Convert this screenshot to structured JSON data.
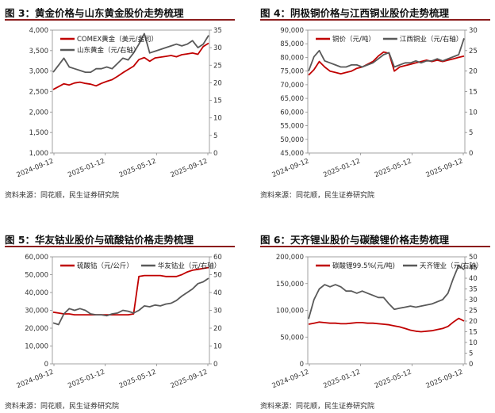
{
  "colors": {
    "red": "#c00000",
    "gray": "#595959",
    "title_rule": "#8b1c1c"
  },
  "panels": [
    {
      "title": "图 3：黄金价格与山东黄金股价走势梳理",
      "source": "资料来源：同花顺，民生证券研究院",
      "chart_data": {
        "type": "line",
        "legend_position": "top-left",
        "x_ticks": [
          "2024-09-12",
          "2025-01-12",
          "2025-05-12",
          "2025-09-12"
        ],
        "y_left": {
          "ticks": [
            "1,000",
            "1,500",
            "2,000",
            "2,500",
            "3,000",
            "3,500",
            "4,000"
          ],
          "min": 1000,
          "max": 4000
        },
        "y_right": {
          "ticks": [
            "0",
            "5",
            "10",
            "15",
            "20",
            "25",
            "30",
            "35"
          ],
          "min": 0,
          "max": 35
        },
        "series": [
          {
            "name": "COMEX黄金（美元/盎司）",
            "color": "#c00000",
            "axis": "left",
            "values": [
              2550,
              2620,
              2690,
              2660,
              2710,
              2730,
              2700,
              2680,
              2640,
              2700,
              2750,
              2790,
              2870,
              2960,
              3040,
              3120,
              3280,
              3330,
              3240,
              3320,
              3340,
              3360,
              3380,
              3350,
              3400,
              3420,
              3440,
              3410,
              3600,
              3680
            ]
          },
          {
            "name": "山东黄金（元/右轴）",
            "color": "#595959",
            "axis": "right",
            "values": [
              23.0,
              25.0,
              27.0,
              24.5,
              24.0,
              23.5,
              23.0,
              23.0,
              24.0,
              24.0,
              24.5,
              24.0,
              25.5,
              27.0,
              26.5,
              28.5,
              31.0,
              34.0,
              28.5,
              29.0,
              29.5,
              30.0,
              30.5,
              31.0,
              30.5,
              31.0,
              32.0,
              30.0,
              31.0,
              33.5
            ]
          }
        ]
      }
    },
    {
      "title": "图 4：阴极铜价格与江西铜业股价走势梳理",
      "source": "资料来源：同花顺，民生证券研究院",
      "chart_data": {
        "type": "line",
        "legend_position": "top-left",
        "x_ticks": [
          "2024-09-12",
          "2025-01-12",
          "2025-05-12",
          "2025-09-12"
        ],
        "y_left": {
          "ticks": [
            "45,000",
            "50,000",
            "55,000",
            "60,000",
            "65,000",
            "70,000",
            "75,000",
            "80,000",
            "85,000",
            "90,000"
          ],
          "min": 45000,
          "max": 90000
        },
        "y_right": {
          "ticks": [
            "0",
            "5",
            "10",
            "15",
            "20",
            "25",
            "30"
          ],
          "min": 0,
          "max": 30
        },
        "series": [
          {
            "name": "铜价（元/吨）",
            "color": "#c00000",
            "axis": "left",
            "values": [
              73500,
              75500,
              78500,
              76500,
              75000,
              74500,
              74000,
              74500,
              75000,
              76000,
              76500,
              77500,
              78500,
              80500,
              82000,
              81500,
              75000,
              76500,
              77000,
              77500,
              78000,
              78500,
              79000,
              78500,
              79000,
              78500,
              79000,
              79500,
              80000,
              80500
            ]
          },
          {
            "name": "江西铜业（元/右轴）",
            "color": "#595959",
            "axis": "right",
            "values": [
              20.0,
              23.5,
              25.0,
              22.5,
              22.0,
              21.5,
              21.0,
              21.0,
              21.5,
              21.5,
              21.0,
              21.5,
              22.0,
              23.0,
              24.0,
              24.5,
              21.0,
              21.5,
              22.0,
              22.0,
              22.5,
              22.0,
              22.5,
              22.5,
              23.0,
              22.5,
              23.0,
              23.5,
              24.0,
              28.0
            ]
          }
        ]
      }
    },
    {
      "title": "图 5：华友钴业股价与硫酸钴价格走势梳理",
      "source": "资料来源：同花顺，民生证券研究院",
      "chart_data": {
        "type": "line",
        "legend_position": "top-left",
        "x_ticks": [
          "2024-09-12",
          "2025-01-12",
          "2025-05-12",
          "2025-09-12"
        ],
        "y_left": {
          "ticks": [
            "0",
            "10,000",
            "20,000",
            "30,000",
            "40,000",
            "50,000",
            "60,000"
          ],
          "min": 0,
          "max": 60000
        },
        "y_right": {
          "ticks": [
            "0",
            "10",
            "20",
            "30",
            "40",
            "50",
            "60"
          ],
          "min": 0,
          "max": 60
        },
        "series": [
          {
            "name": "硫酸钴（元/公斤）",
            "color": "#c00000",
            "axis": "left",
            "values": [
              29000,
              28500,
              28000,
              28000,
              27500,
              27500,
              27500,
              27500,
              27500,
              27500,
              27500,
              27500,
              27500,
              27500,
              27500,
              28000,
              49000,
              49500,
              49500,
              49500,
              49500,
              49000,
              49000,
              49000,
              50000,
              51500,
              52500,
              53000,
              53500,
              54000
            ]
          },
          {
            "name": "华友钴业（元/右轴）",
            "color": "#595959",
            "axis": "right",
            "values": [
              23.0,
              22.0,
              28.0,
              31.0,
              30.0,
              31.0,
              30.0,
              28.0,
              27.5,
              27.5,
              27.0,
              28.0,
              28.5,
              30.0,
              29.5,
              28.5,
              30.0,
              32.5,
              32.0,
              33.0,
              32.5,
              33.5,
              34.0,
              35.5,
              38.0,
              40.0,
              42.0,
              45.0,
              46.0,
              48.0
            ]
          }
        ]
      }
    },
    {
      "title": "图 6：天齐锂业股价与碳酸锂价格走势梳理",
      "source": "资料来源：同花顺，民生证券研究院",
      "chart_data": {
        "type": "line",
        "legend_position": "top-left",
        "x_ticks": [
          "2024-09-12",
          "2025-01-12",
          "2025-05-12",
          "2025-09-12"
        ],
        "y_left": {
          "ticks": [
            "0",
            "50,000",
            "100,000",
            "150,000",
            "200,000"
          ],
          "min": 0,
          "max": 200000
        },
        "y_right": {
          "ticks": [
            "0",
            "5",
            "10",
            "15",
            "20",
            "25",
            "30",
            "35",
            "40",
            "45",
            "50"
          ],
          "min": 0,
          "max": 50
        },
        "series": [
          {
            "name": "碳酸锂99.5%(元/吨)",
            "color": "#c00000",
            "axis": "left",
            "values": [
              74000,
              76000,
              78000,
              77000,
              76000,
              76000,
              75000,
              75000,
              76000,
              77000,
              77000,
              76000,
              76000,
              75000,
              74000,
              73000,
              71000,
              69000,
              66000,
              63000,
              61000,
              60000,
              61000,
              62000,
              64000,
              66000,
              70000,
              78000,
              85000,
              80000
            ]
          },
          {
            "name": "天齐锂业（元/右轴）",
            "color": "#595959",
            "axis": "right",
            "values": [
              21.0,
              30.0,
              35.0,
              37.0,
              36.0,
              37.0,
              36.0,
              34.0,
              34.0,
              33.0,
              34.0,
              33.0,
              32.0,
              31.0,
              31.0,
              28.0,
              25.5,
              26.0,
              26.5,
              27.0,
              26.5,
              27.0,
              27.5,
              28.0,
              29.0,
              30.0,
              33.0,
              40.0,
              46.0,
              44.0
            ]
          }
        ]
      }
    }
  ]
}
